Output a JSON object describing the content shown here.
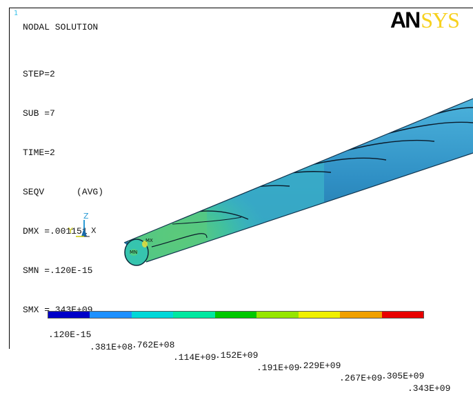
{
  "window_number": "1",
  "logo": {
    "part_a": "AN",
    "part_b": "SYS"
  },
  "info": {
    "title": "NODAL SOLUTION",
    "lines": [
      "STEP=2",
      "SUB =7",
      "TIME=2",
      "SEQV      (AVG)",
      "DMX =.001151",
      "SMN =.120E-15",
      "SMX =.343E+09"
    ]
  },
  "triad": {
    "z": "Z",
    "y": "Y",
    "x": "X"
  },
  "markers": {
    "max": "MX",
    "min": "MN"
  },
  "legend": {
    "colors": [
      "#0000c8",
      "#1e90ff",
      "#00d8d8",
      "#00e8a0",
      "#00c800",
      "#96e600",
      "#f0f000",
      "#f0a000",
      "#e80000"
    ],
    "top_labels": [
      ".120E-15",
      ".762E+08",
      ".152E+09",
      ".229E+09",
      ".305E+09"
    ],
    "bottom_labels": [
      ".381E+08",
      ".114E+09",
      ".191E+09",
      ".267E+09",
      ".343E+09"
    ]
  },
  "colors": {
    "rod_base": "#2f8fc4",
    "rod_light": "#3aa0d0",
    "rod_green": "#46b88e",
    "rod_cyan": "#38c0c0",
    "end_face": "#30c8b0"
  }
}
